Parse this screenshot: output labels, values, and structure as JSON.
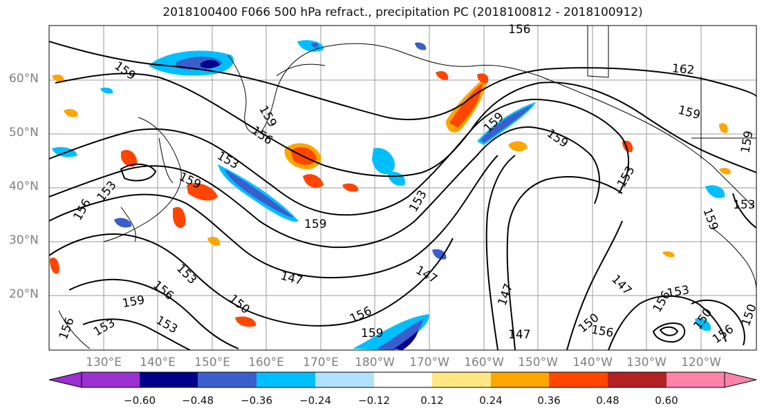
{
  "title": "2018100400 F066 500 hPa refract., precipitation PC (2018100812 - 2018100912)",
  "lat_labels": [
    "60°N",
    "50°N",
    "40°N",
    "30°N",
    "20°N"
  ],
  "lon_labels": [
    "130°E",
    "140°E",
    "150°E",
    "160°E",
    "170°E",
    "180°W",
    "170°W",
    "160°W",
    "150°W",
    "140°W",
    "130°W",
    "120°W"
  ],
  "contour_labels": [
    "159",
    "156",
    "159",
    "156",
    "153",
    "159",
    "153",
    "156",
    "153",
    "159",
    "153",
    "159",
    "162",
    "159",
    "159",
    "153",
    "159",
    "153",
    "150",
    "147",
    "147",
    "147",
    "156",
    "156",
    "159",
    "150",
    "156",
    "159",
    "153",
    "147",
    "150",
    "156",
    "150",
    "153",
    "147",
    "153",
    "156",
    "156",
    "159"
  ],
  "colorbar": {
    "ticks": [
      "−0.60",
      "−0.48",
      "−0.36",
      "−0.24",
      "−0.12",
      "0.12",
      "0.24",
      "0.36",
      "0.48",
      "0.60"
    ],
    "colors": [
      "#9b30d0",
      "#00008b",
      "#3a5fcd",
      "#00bfff",
      "#b0e2ff",
      "#ffffff",
      "#ffe680",
      "#ffa500",
      "#ff4500",
      "#b22222",
      "#ff82ab"
    ]
  }
}
